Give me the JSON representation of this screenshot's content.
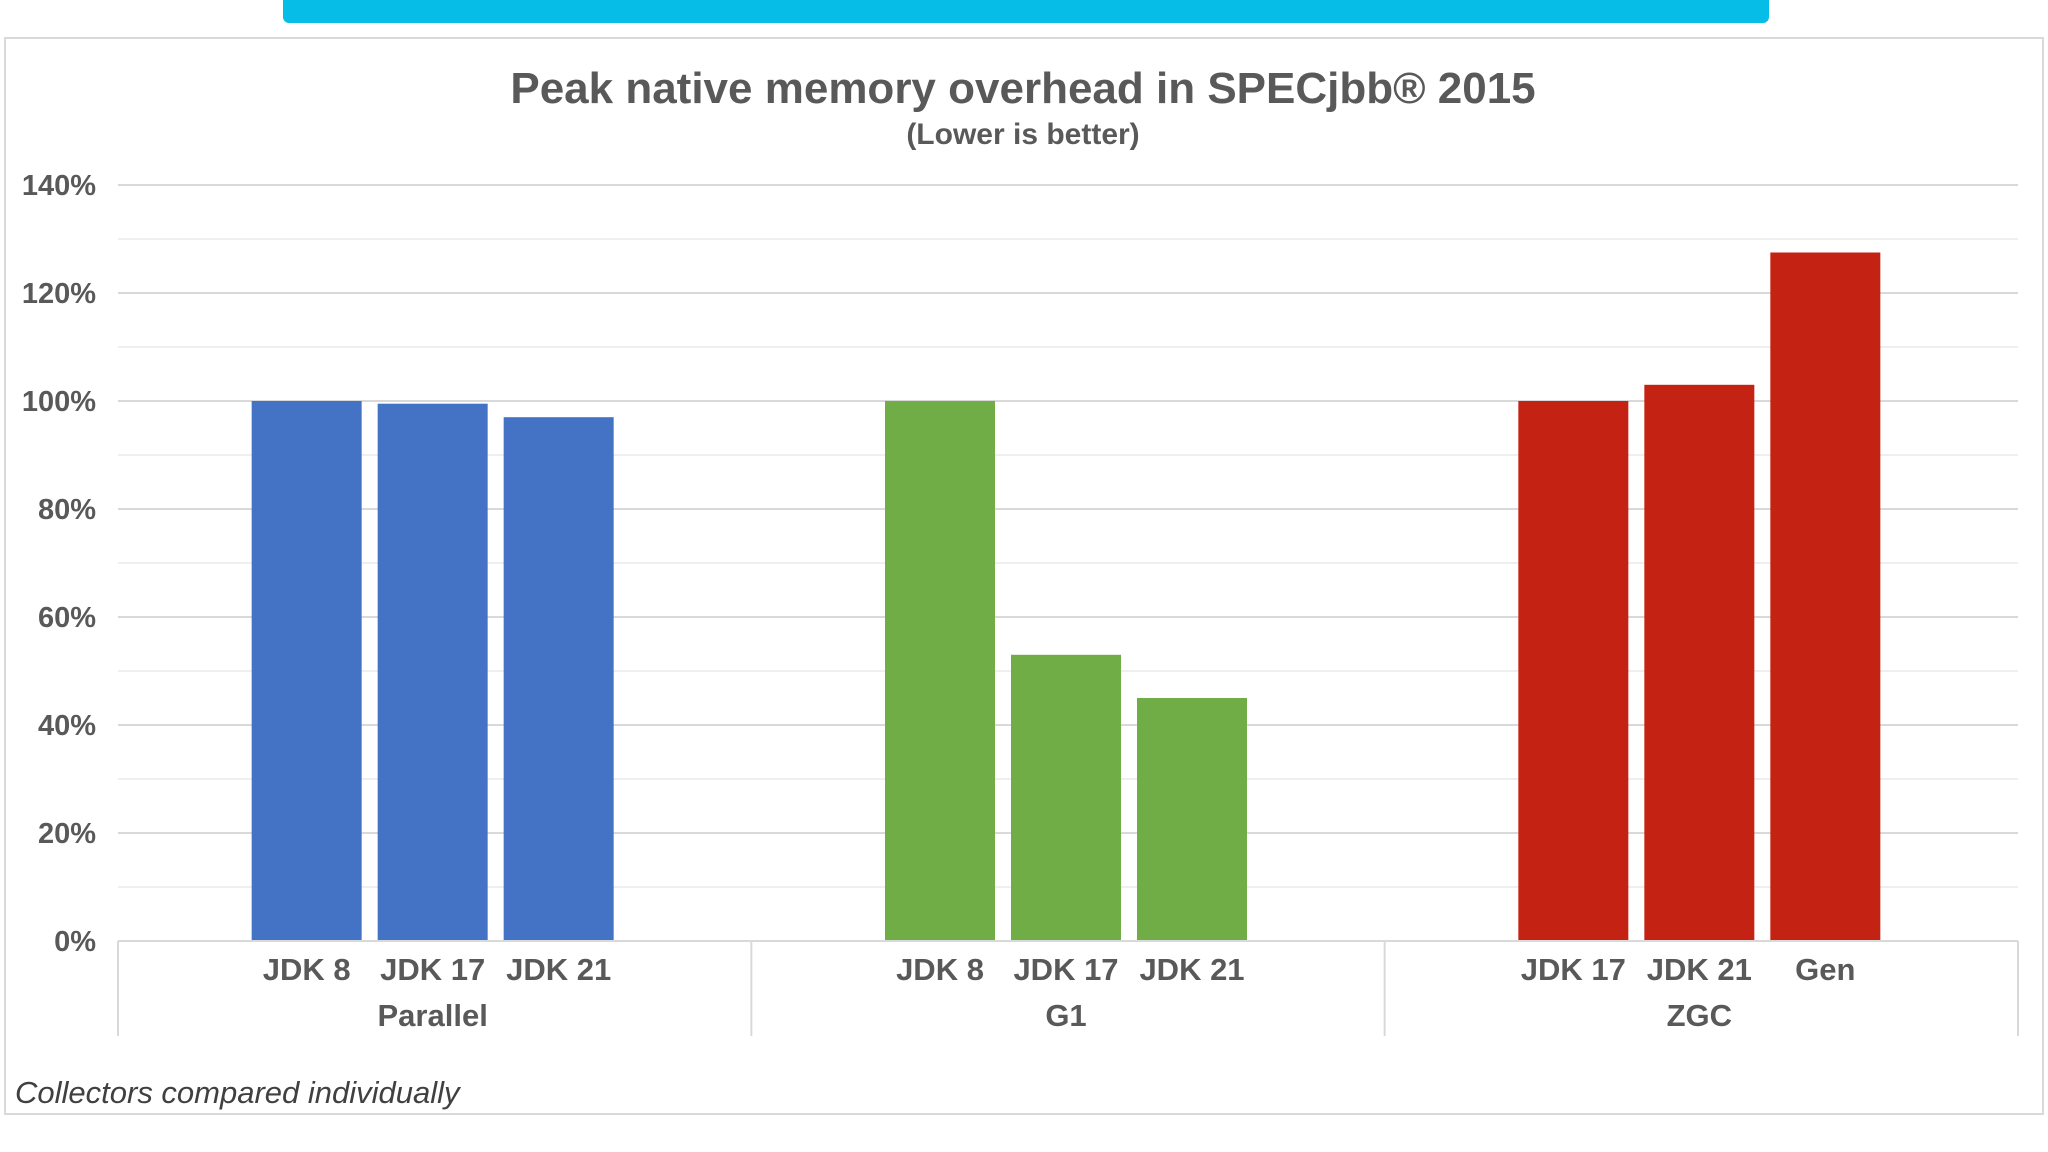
{
  "chart_data": {
    "type": "bar",
    "title": "Peak native memory overhead in SPECjbb® 2015",
    "subtitle": "(Lower is better)",
    "ylim": [
      0,
      140
    ],
    "yticks": [
      "0%",
      "20%",
      "40%",
      "60%",
      "80%",
      "100%",
      "120%",
      "140%"
    ],
    "grid": true,
    "groups": [
      {
        "name": "Parallel",
        "color": "#4472C4",
        "categories": [
          "JDK 8",
          "JDK 17",
          "JDK 21"
        ],
        "values": [
          100,
          99.5,
          97
        ]
      },
      {
        "name": "G1",
        "color": "#70AD47",
        "categories": [
          "JDK 8",
          "JDK 17",
          "JDK 21"
        ],
        "values": [
          100,
          53,
          45
        ]
      },
      {
        "name": "ZGC",
        "color": "#C42314",
        "categories": [
          "JDK 17",
          "JDK 21",
          "Gen"
        ],
        "values": [
          100,
          103,
          127.5
        ]
      }
    ],
    "footnote": "Collectors compared individually"
  },
  "colors": {
    "accent_bar": "#05BDE7",
    "text": "#595959",
    "grid_major": "#d9d9d9",
    "grid_minor": "#efefef"
  }
}
